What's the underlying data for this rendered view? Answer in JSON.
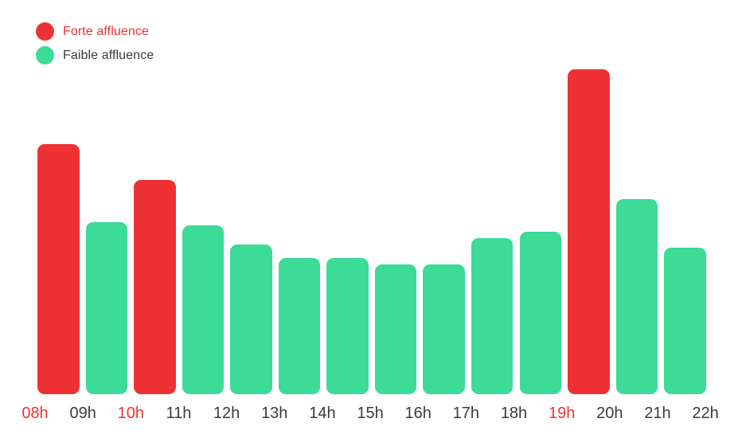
{
  "colors": {
    "forte": "#EE3233",
    "faible": "#3CDB98",
    "text": "#3B3B3F",
    "background": "#FFFFFF"
  },
  "legend": {
    "items": [
      {
        "id": "forte",
        "label": "Forte affluence",
        "color": "#EE3233"
      },
      {
        "id": "faible",
        "label": "Faible affluence",
        "color": "#3CDB98"
      }
    ]
  },
  "chart_data": {
    "type": "bar",
    "title": "",
    "xlabel": "",
    "ylabel": "",
    "ylim": [
      0,
      100
    ],
    "grid": false,
    "legend_position": "top-left",
    "categories": [
      "08h",
      "09h",
      "10h",
      "11h",
      "12h",
      "13h",
      "14h",
      "15h",
      "16h",
      "17h",
      "18h",
      "19h",
      "20h",
      "21h"
    ],
    "values": [
      77,
      53,
      66,
      52,
      46,
      42,
      42,
      40,
      40,
      48,
      50,
      100,
      60,
      45
    ],
    "bars": [
      {
        "hour": "08h",
        "value": 77,
        "affluence": "forte"
      },
      {
        "hour": "09h",
        "value": 53,
        "affluence": "faible"
      },
      {
        "hour": "10h",
        "value": 66,
        "affluence": "forte"
      },
      {
        "hour": "11h",
        "value": 52,
        "affluence": "faible"
      },
      {
        "hour": "12h",
        "value": 46,
        "affluence": "faible"
      },
      {
        "hour": "13h",
        "value": 42,
        "affluence": "faible"
      },
      {
        "hour": "14h",
        "value": 42,
        "affluence": "faible"
      },
      {
        "hour": "15h",
        "value": 40,
        "affluence": "faible"
      },
      {
        "hour": "16h",
        "value": 40,
        "affluence": "faible"
      },
      {
        "hour": "17h",
        "value": 48,
        "affluence": "faible"
      },
      {
        "hour": "18h",
        "value": 50,
        "affluence": "faible"
      },
      {
        "hour": "19h",
        "value": 100,
        "affluence": "forte"
      },
      {
        "hour": "20h",
        "value": 60,
        "affluence": "faible"
      },
      {
        "hour": "21h",
        "value": 45,
        "affluence": "faible"
      }
    ],
    "x_axis_labels": [
      {
        "text": "08h",
        "highlight": true
      },
      {
        "text": "09h",
        "highlight": false
      },
      {
        "text": "10h",
        "highlight": true
      },
      {
        "text": "11h",
        "highlight": false
      },
      {
        "text": "12h",
        "highlight": false
      },
      {
        "text": "13h",
        "highlight": false
      },
      {
        "text": "14h",
        "highlight": false
      },
      {
        "text": "15h",
        "highlight": false
      },
      {
        "text": "16h",
        "highlight": false
      },
      {
        "text": "17h",
        "highlight": false
      },
      {
        "text": "18h",
        "highlight": false
      },
      {
        "text": "19h",
        "highlight": true
      },
      {
        "text": "20h",
        "highlight": false
      },
      {
        "text": "21h",
        "highlight": false
      },
      {
        "text": "22h",
        "highlight": false
      }
    ]
  }
}
